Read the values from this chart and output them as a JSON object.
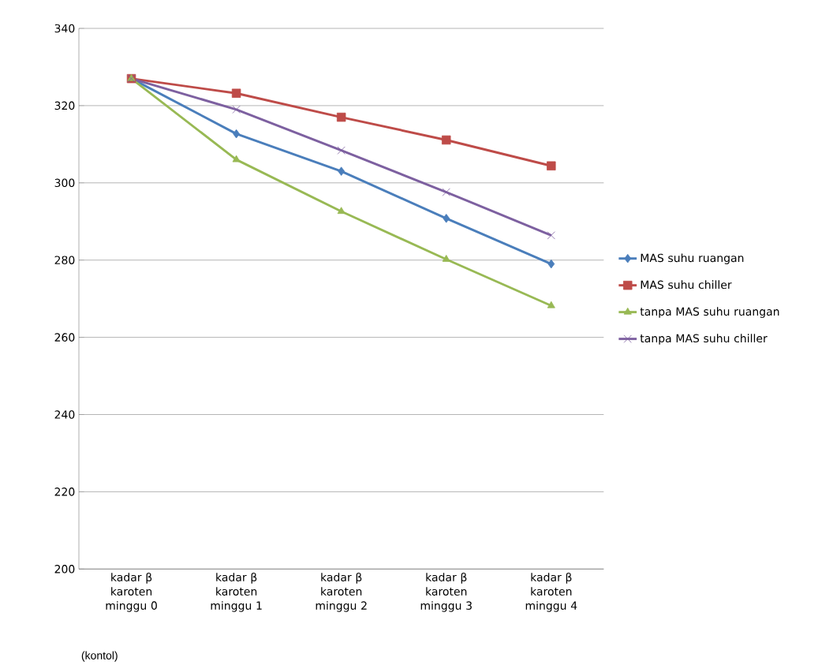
{
  "chart_data": {
    "type": "line",
    "categories": [
      "kadar β karoten minggu 0",
      "kadar β karoten minggu 1",
      "kadar β karoten minggu 2",
      "kadar β karoten minggu 3",
      "kadar β karoten minggu 4"
    ],
    "series": [
      {
        "name": "MAS suhu ruangan",
        "color": "#4a7ebb",
        "marker": "diamond",
        "values": [
          327,
          312.7,
          303,
          290.8,
          279
        ]
      },
      {
        "name": "MAS suhu chiller",
        "color": "#be4b48",
        "marker": "square",
        "values": [
          327,
          323.2,
          317,
          311.1,
          304.4
        ]
      },
      {
        "name": "tanpa MAS suhu ruangan",
        "color": "#98b954",
        "marker": "triangle",
        "values": [
          327,
          306,
          292.6,
          280.2,
          268.2
        ]
      },
      {
        "name": "tanpa MAS suhu chiller",
        "color": "#7d60a0",
        "marker": "cross",
        "values": [
          327,
          319,
          308.4,
          297.6,
          286.4
        ]
      }
    ],
    "ylim": [
      200,
      340
    ],
    "yticks": [
      200,
      220,
      240,
      260,
      280,
      300,
      320,
      340
    ],
    "grid": "y",
    "legend": "right",
    "line_style": "solid",
    "annotations": [
      "(kontol)"
    ]
  }
}
